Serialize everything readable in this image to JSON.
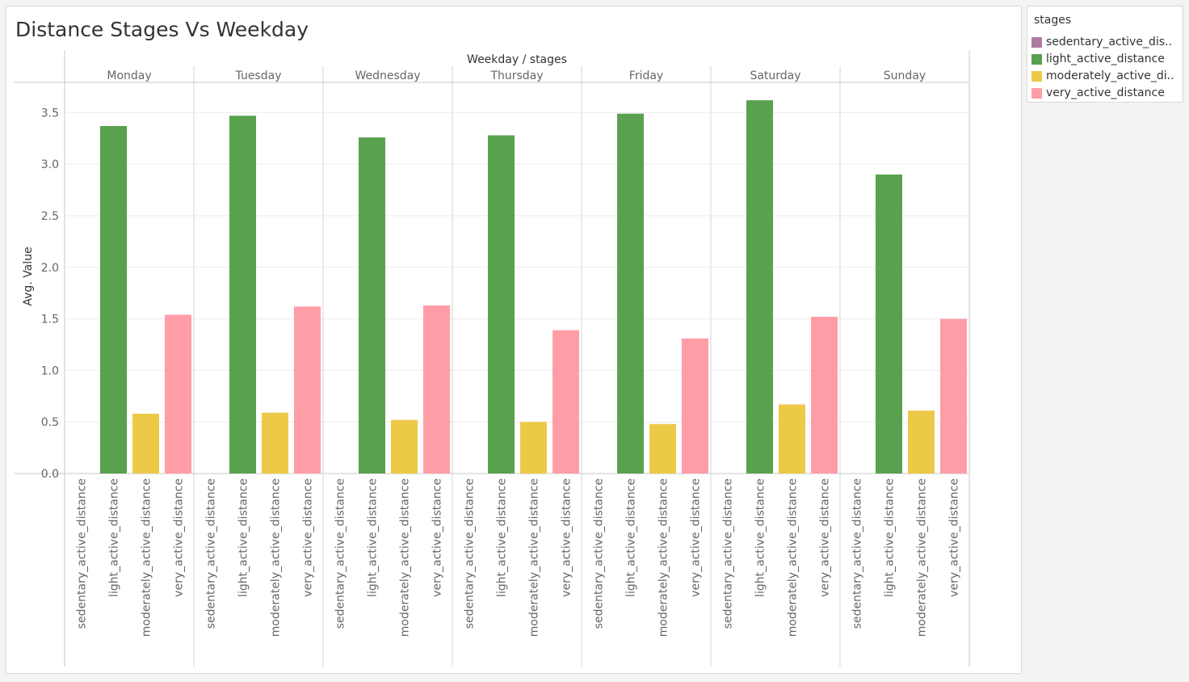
{
  "page": {
    "title": "Distance Stages Vs Weekday"
  },
  "legend": {
    "title": "stages",
    "items": [
      {
        "label": "sedentary_active_dis..",
        "color": "#b07aa1"
      },
      {
        "label": "light_active_distance",
        "color": "#59a14f"
      },
      {
        "label": "moderately_active_di..",
        "color": "#edc948"
      },
      {
        "label": "very_active_distance",
        "color": "#ff9da7"
      }
    ]
  },
  "chart_data": {
    "type": "bar",
    "title": "Distance Stages Vs Weekday",
    "header_label": "Weekday / stages",
    "ylabel": "Avg. Value",
    "ylim": [
      0,
      3.75
    ],
    "yticks": [
      "0.0",
      "0.5",
      "1.0",
      "1.5",
      "2.0",
      "2.5",
      "3.0",
      "3.5"
    ],
    "ytick_values": [
      0,
      0.5,
      1.0,
      1.5,
      2.0,
      2.5,
      3.0,
      3.5
    ],
    "grid": true,
    "weekdays": [
      "Monday",
      "Tuesday",
      "Wednesday",
      "Thursday",
      "Friday",
      "Saturday",
      "Sunday"
    ],
    "stages": [
      "sedentary_active_distance",
      "light_active_distance",
      "moderately_active_distance",
      "very_active_distance"
    ],
    "series": [
      {
        "name": "sedentary_active_distance",
        "color": "#b07aa1",
        "values": [
          0.0,
          0.0,
          0.0,
          0.0,
          0.0,
          0.0,
          0.0
        ]
      },
      {
        "name": "light_active_distance",
        "color": "#59a14f",
        "values": [
          3.37,
          3.47,
          3.26,
          3.28,
          3.49,
          3.62,
          2.9
        ]
      },
      {
        "name": "moderately_active_distance",
        "color": "#edc948",
        "values": [
          0.58,
          0.59,
          0.52,
          0.5,
          0.48,
          0.67,
          0.61
        ]
      },
      {
        "name": "very_active_distance",
        "color": "#ff9da7",
        "values": [
          1.54,
          1.62,
          1.63,
          1.39,
          1.31,
          1.52,
          1.5
        ]
      }
    ]
  }
}
